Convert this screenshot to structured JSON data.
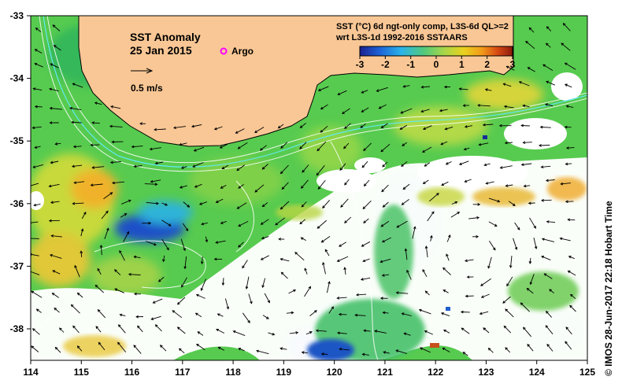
{
  "map": {
    "title": "SST Anomaly",
    "date": "25 Jan 2015",
    "argo_label": "Argo",
    "velocity_label": "0.5 m/s",
    "product_line1": "SST (°C) 6d ngt-only comp, L3S-6d QL>=2",
    "product_line2": "wrt L3S-1d 1992-2016 SSTAARS",
    "credit": "© IMOS 28-Jun-2017 22:18 Hobart Time",
    "colorbar": {
      "ticks": [
        "-3",
        "-2",
        "-1",
        "0",
        "1",
        "2",
        "3"
      ],
      "colors": [
        "#1a1f8f",
        "#1d62d6",
        "#2bb3ea",
        "#52c97a",
        "#a6d64a",
        "#e9d21e",
        "#f29a1a",
        "#d84a14",
        "#8b1a0d"
      ]
    },
    "lon_ticks": [
      "114",
      "115",
      "116",
      "117",
      "118",
      "119",
      "120",
      "121",
      "122",
      "123",
      "124",
      "125"
    ],
    "lat_ticks": [
      "-33",
      "-34",
      "-35",
      "-36",
      "-37",
      "-38"
    ],
    "colors": {
      "land": "#f9c795",
      "ocean_green": "#5ccf52",
      "anomaly_blue": "#1f5fcf",
      "anomaly_orange": "#f1a825",
      "argo_marker": "#ff00ff"
    }
  }
}
